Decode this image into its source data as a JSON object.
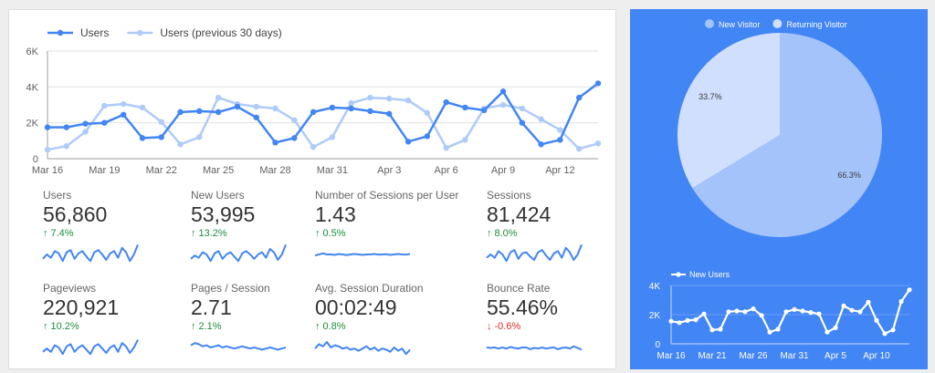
{
  "chart_data": [
    {
      "type": "line",
      "x": [
        "Mar 16",
        "Mar 17",
        "Mar 18",
        "Mar 19",
        "Mar 20",
        "Mar 21",
        "Mar 22",
        "Mar 23",
        "Mar 24",
        "Mar 25",
        "Mar 26",
        "Mar 27",
        "Mar 28",
        "Mar 29",
        "Mar 30",
        "Mar 31",
        "Apr 1",
        "Apr 2",
        "Apr 3",
        "Apr 4",
        "Apr 5",
        "Apr 6",
        "Apr 7",
        "Apr 8",
        "Apr 9",
        "Apr 10",
        "Apr 11",
        "Apr 12",
        "Apr 13",
        "Apr 14"
      ],
      "x_tick_labels": [
        "Mar 16",
        "Mar 19",
        "Mar 22",
        "Mar 25",
        "Mar 28",
        "Mar 31",
        "Apr 3",
        "Apr 6",
        "Apr 9",
        "Apr 12"
      ],
      "y_tick_labels": [
        "0",
        "2K",
        "4K",
        "6K"
      ],
      "ylim": [
        0,
        6000
      ],
      "legend_position": "top-left",
      "series": [
        {
          "name": "Users",
          "color": "#4285f4",
          "values": [
            1750,
            1750,
            1950,
            2000,
            2450,
            1150,
            1200,
            2600,
            2650,
            2600,
            2900,
            2300,
            900,
            1150,
            2600,
            2850,
            2800,
            2650,
            2500,
            950,
            1250,
            3150,
            2850,
            2700,
            3750,
            2000,
            800,
            1050,
            3400,
            4200
          ]
        },
        {
          "name": "Users (previous 30 days)",
          "color": "#aecbfa",
          "values": [
            500,
            700,
            1500,
            2950,
            3050,
            2850,
            2050,
            800,
            1200,
            3400,
            3050,
            2900,
            2800,
            2150,
            650,
            1200,
            3100,
            3400,
            3350,
            3250,
            2550,
            600,
            1050,
            2800,
            3000,
            2800,
            2200,
            1600,
            550,
            850
          ]
        }
      ]
    },
    {
      "type": "pie",
      "legend_position": "top",
      "slices": [
        {
          "name": "New Visitor",
          "value": 66.3,
          "label": "66.3%",
          "color": "#a5c3fb"
        },
        {
          "name": "Returning Visitor",
          "value": 33.7,
          "label": "33.7%",
          "color": "#cfdffd"
        }
      ]
    },
    {
      "type": "line",
      "x_tick_labels": [
        "Mar 16",
        "Mar 21",
        "Mar 26",
        "Mar 31",
        "Apr 5",
        "Apr 10"
      ],
      "y_tick_labels": [
        "0",
        "2K",
        "4K"
      ],
      "ylim": [
        0,
        4000
      ],
      "legend_position": "top-left",
      "series": [
        {
          "name": "New Users",
          "color": "#ffffff",
          "values": [
            1550,
            1450,
            1600,
            1650,
            2050,
            950,
            1000,
            2200,
            2250,
            2200,
            2400,
            1950,
            800,
            1000,
            2200,
            2350,
            2250,
            2150,
            2050,
            800,
            1100,
            2600,
            2300,
            2200,
            2850,
            1600,
            700,
            950,
            2900,
            3700
          ]
        }
      ]
    }
  ],
  "kpis": [
    {
      "title": "Users",
      "value": "56,860",
      "delta": "7.4%",
      "direction": "up",
      "arrow": "↑",
      "spark": [
        0.3,
        0.5,
        0.35,
        0.65,
        0.55,
        0.2,
        0.6,
        0.7,
        0.3,
        0.55,
        0.65,
        0.4,
        0.2,
        0.6,
        0.7,
        0.5,
        0.25,
        0.55,
        0.65,
        0.35,
        0.8,
        0.6,
        0.2,
        0.5,
        0.95
      ]
    },
    {
      "title": "New Users",
      "value": "53,995",
      "delta": "13.2%",
      "direction": "up",
      "arrow": "↑",
      "spark": [
        0.3,
        0.45,
        0.35,
        0.6,
        0.5,
        0.2,
        0.55,
        0.65,
        0.3,
        0.5,
        0.6,
        0.4,
        0.2,
        0.55,
        0.65,
        0.5,
        0.3,
        0.5,
        0.6,
        0.35,
        0.75,
        0.6,
        0.25,
        0.5,
        0.95
      ]
    },
    {
      "title": "Number of Sessions per User",
      "value": "1.43",
      "delta": "0.5%",
      "direction": "up",
      "arrow": "↑",
      "spark": [
        0.45,
        0.5,
        0.55,
        0.5,
        0.5,
        0.48,
        0.52,
        0.5,
        0.47,
        0.5,
        0.52,
        0.5,
        0.48,
        0.5,
        0.5,
        0.52,
        0.49,
        0.5,
        0.51,
        0.48,
        0.5,
        0.52,
        0.5,
        0.49,
        0.52
      ]
    },
    {
      "title": "Sessions",
      "value": "81,424",
      "delta": "8.0%",
      "direction": "up",
      "arrow": "↑",
      "spark": [
        0.35,
        0.5,
        0.35,
        0.65,
        0.5,
        0.2,
        0.6,
        0.7,
        0.3,
        0.55,
        0.6,
        0.4,
        0.25,
        0.6,
        0.7,
        0.45,
        0.25,
        0.55,
        0.65,
        0.35,
        0.8,
        0.6,
        0.25,
        0.5,
        0.95
      ]
    },
    {
      "title": "Pageviews",
      "value": "220,921",
      "delta": "10.2%",
      "direction": "up",
      "arrow": "↑",
      "spark": [
        0.3,
        0.45,
        0.3,
        0.6,
        0.5,
        0.2,
        0.55,
        0.65,
        0.3,
        0.5,
        0.6,
        0.4,
        0.2,
        0.55,
        0.65,
        0.45,
        0.25,
        0.5,
        0.6,
        0.3,
        0.7,
        0.55,
        0.25,
        0.5,
        0.85
      ]
    },
    {
      "title": "Pages / Session",
      "value": "2.71",
      "delta": "2.1%",
      "direction": "up",
      "arrow": "↑",
      "spark": [
        0.6,
        0.7,
        0.65,
        0.55,
        0.6,
        0.5,
        0.55,
        0.6,
        0.5,
        0.55,
        0.5,
        0.45,
        0.5,
        0.55,
        0.5,
        0.45,
        0.5,
        0.45,
        0.4,
        0.45,
        0.5,
        0.45,
        0.4,
        0.45,
        0.5
      ]
    },
    {
      "title": "Avg. Session Duration",
      "value": "00:02:49",
      "delta": "0.8%",
      "direction": "up",
      "arrow": "↑",
      "spark": [
        0.45,
        0.65,
        0.55,
        0.75,
        0.5,
        0.6,
        0.55,
        0.45,
        0.5,
        0.4,
        0.45,
        0.35,
        0.45,
        0.55,
        0.4,
        0.5,
        0.35,
        0.45,
        0.4,
        0.3,
        0.5,
        0.35,
        0.45,
        0.2,
        0.4
      ]
    },
    {
      "title": "Bounce Rate",
      "value": "55.46%",
      "delta": "-0.6%",
      "direction": "down",
      "arrow": "↓",
      "spark": [
        0.5,
        0.48,
        0.5,
        0.45,
        0.5,
        0.45,
        0.52,
        0.48,
        0.45,
        0.5,
        0.5,
        0.42,
        0.48,
        0.45,
        0.5,
        0.45,
        0.48,
        0.5,
        0.42,
        0.48,
        0.5,
        0.45,
        0.55,
        0.48,
        0.4
      ]
    }
  ]
}
